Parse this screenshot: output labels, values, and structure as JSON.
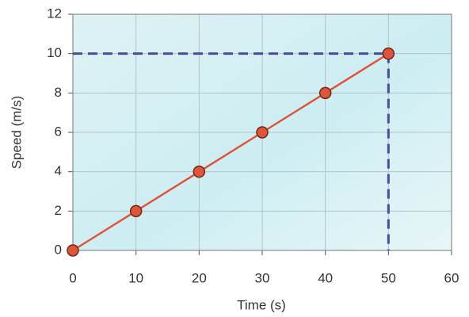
{
  "chart_data": {
    "type": "line",
    "x_label": "Time (s)",
    "y_label": "Speed (m/s)",
    "x": [
      0,
      10,
      20,
      30,
      40,
      50
    ],
    "series": [
      {
        "color": "#e0553a",
        "values": [
          0,
          2,
          4,
          6,
          8,
          10
        ]
      }
    ],
    "guide_color": "#4b4a9c",
    "xlim": [
      0,
      60
    ],
    "xticks": [
      0,
      10,
      20,
      30,
      40,
      50,
      60
    ],
    "ylim": [
      0,
      12
    ],
    "yticks": [
      0,
      2,
      4,
      6,
      8,
      10,
      12
    ],
    "grid": true
  }
}
